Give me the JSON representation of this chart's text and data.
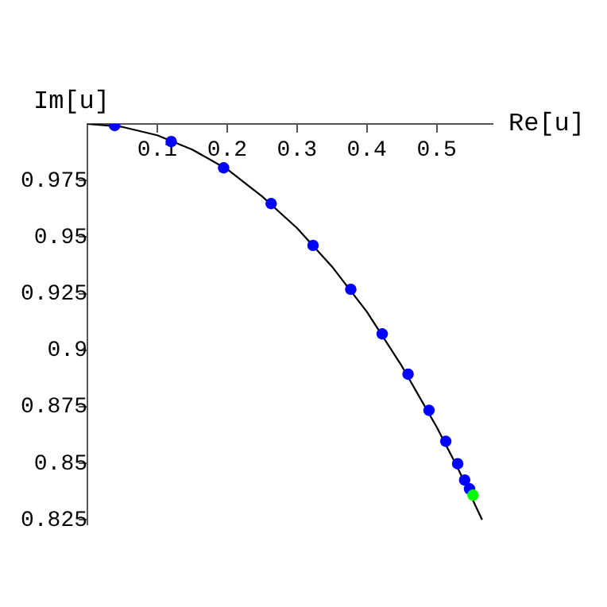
{
  "chart_data": {
    "type": "scatter",
    "xlabel": "Re[u]",
    "ylabel": "Im[u]",
    "xlim": [
      0,
      0.58
    ],
    "ylim": [
      0.823,
      1.0
    ],
    "xticks": [
      0.1,
      0.2,
      0.3,
      0.4,
      0.5
    ],
    "yticks": [
      0.825,
      0.85,
      0.875,
      0.9,
      0.925,
      0.95,
      0.975
    ],
    "grid": false,
    "legend": false,
    "marker": "circle",
    "series": [
      {
        "type": "line",
        "color": "#000000",
        "marker": "none",
        "x": [
          0,
          0.05,
          0.1,
          0.15,
          0.2,
          0.25,
          0.3,
          0.35,
          0.4,
          0.45,
          0.5,
          0.53,
          0.565
        ],
        "values": [
          1,
          0.9987,
          0.995,
          0.9887,
          0.98,
          0.968,
          0.954,
          0.937,
          0.917,
          0.893,
          0.866,
          0.848,
          0.825
        ]
      },
      {
        "color": "#0000ff",
        "colors": [
          "#0000ff",
          "#0000ff",
          "#0000ff",
          "#0000ff",
          "#0000ff",
          "#0000ff",
          "#0000ff",
          "#0000ff",
          "#0000ff",
          "#0000ff",
          "#0000ff",
          "#0000ff",
          "#0000ff",
          "#00ff00"
        ],
        "x": [
          0.039,
          0.12,
          0.195,
          0.263,
          0.323,
          0.377,
          0.422,
          0.459,
          0.489,
          0.513,
          0.53,
          0.54,
          0.547,
          0.552
        ],
        "values": [
          0.9993,
          0.9922,
          0.9806,
          0.9648,
          0.9463,
          0.9269,
          0.9072,
          0.8894,
          0.8734,
          0.8597,
          0.8498,
          0.8426,
          0.8387,
          0.8359
        ]
      }
    ]
  }
}
